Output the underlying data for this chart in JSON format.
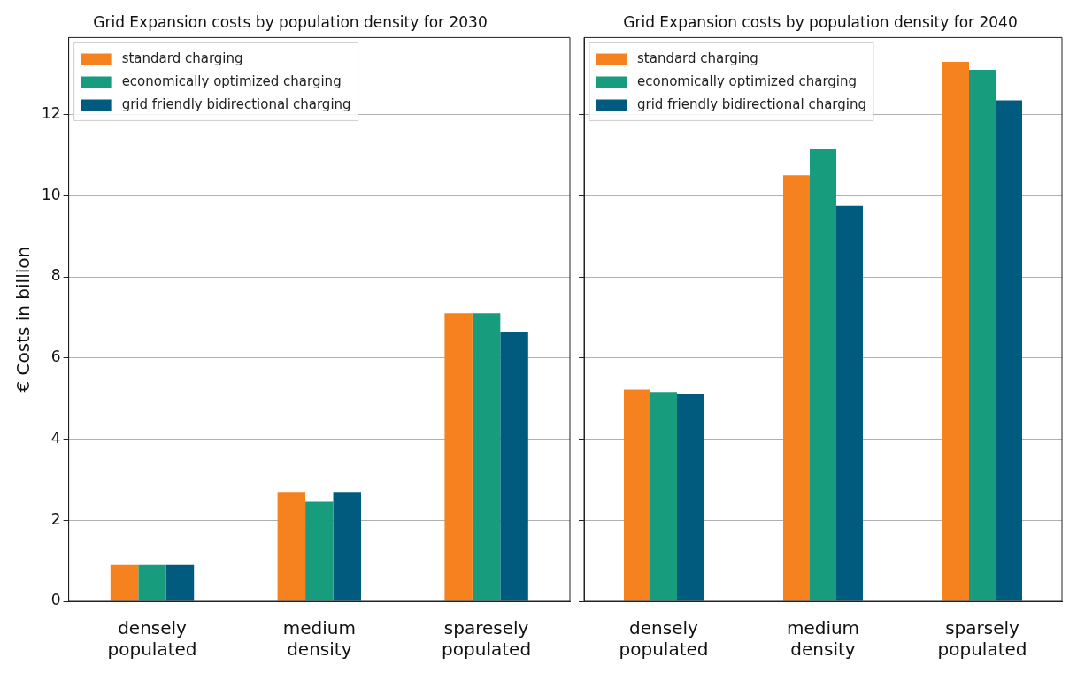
{
  "chart_data": [
    {
      "type": "bar",
      "title": "Grid Expansion costs by population density for 2030",
      "ylabel": "€ Costs in billion",
      "categories": [
        "densely populated",
        "medium density",
        "sparesely populated"
      ],
      "series": [
        {
          "name": "standard charging",
          "color": "#f5821f",
          "values": [
            0.9,
            2.7,
            7.1
          ]
        },
        {
          "name": "economically optimized charging",
          "color": "#179c7d",
          "values": [
            0.9,
            2.45,
            7.1
          ]
        },
        {
          "name": "grid friendly bidirectional charging",
          "color": "#005b7f",
          "values": [
            0.9,
            2.7,
            6.65
          ]
        }
      ],
      "ylim": [
        0,
        13.9
      ],
      "yticks": [
        0,
        2,
        4,
        6,
        8,
        10,
        12
      ],
      "grid": "y",
      "legend": "top left"
    },
    {
      "type": "bar",
      "title": "Grid Expansion costs by population density for 2040",
      "categories": [
        "densely populated",
        "medium density",
        "sparsely populated"
      ],
      "series": [
        {
          "name": "standard charging",
          "color": "#f5821f",
          "values": [
            5.22,
            10.5,
            13.3
          ]
        },
        {
          "name": "economically optimized charging",
          "color": "#179c7d",
          "values": [
            5.16,
            11.15,
            13.1
          ]
        },
        {
          "name": "grid friendly bidirectional charging",
          "color": "#005b7f",
          "values": [
            5.12,
            9.75,
            12.35
          ]
        }
      ],
      "ylim": [
        0,
        13.9
      ],
      "yticks": [
        0,
        2,
        4,
        6,
        8,
        10,
        12
      ],
      "grid": "y",
      "legend": "top left",
      "tick_labels": "x"
    }
  ]
}
